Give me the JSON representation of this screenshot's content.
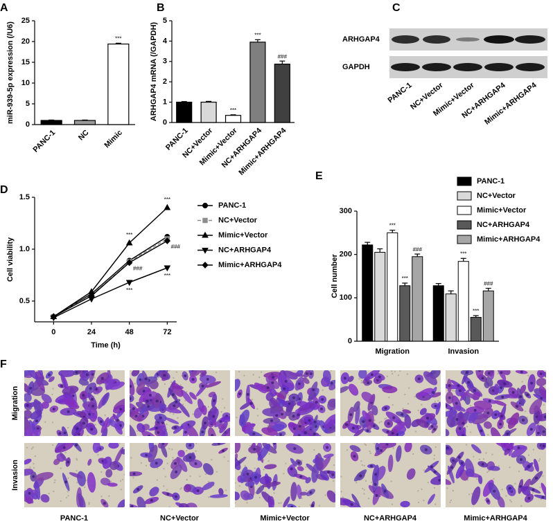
{
  "chart_data": [
    {
      "panel": "A",
      "type": "bar",
      "ylabel": "miR-939-5p expression (/U6)",
      "categories": [
        "PANC-1",
        "NC",
        "Mimic"
      ],
      "values": [
        1.0,
        1.0,
        19.4
      ],
      "errors": [
        0.1,
        0.1,
        0.2
      ],
      "colors": [
        "#000000",
        "#9a9a9a",
        "#ffffff"
      ],
      "marks": [
        null,
        null,
        "***"
      ],
      "ylim": [
        0,
        25
      ],
      "yticks": [
        0,
        5,
        10,
        15,
        20,
        25
      ]
    },
    {
      "panel": "B",
      "type": "bar",
      "ylabel": "ARHGAP4 mRNA (/GAPDH)",
      "categories": [
        "PANC-1",
        "NC+Vector",
        "Mimic+Vector",
        "NC+ARHGAP4",
        "Mimic+ARHGAP4"
      ],
      "values": [
        1.0,
        1.0,
        0.35,
        3.95,
        2.87
      ],
      "errors": [
        0.03,
        0.04,
        0.03,
        0.12,
        0.15
      ],
      "colors": [
        "#000000",
        "#d9d9d9",
        "#ffffff",
        "#7f7f7f",
        "#404040"
      ],
      "marks": [
        null,
        null,
        "***",
        "***",
        "###"
      ],
      "ylim": [
        0,
        5
      ],
      "yticks": [
        0,
        1,
        2,
        3,
        4,
        5
      ]
    },
    {
      "panel": "D",
      "type": "line",
      "xlabel": "Time (h)",
      "ylabel": "Cell viability",
      "x": [
        0,
        24,
        48,
        72
      ],
      "xlim": [
        -12,
        78
      ],
      "xticks": [
        0,
        24,
        48,
        72
      ],
      "ylim": [
        0.3,
        1.5
      ],
      "yticks": [
        0.5,
        {
          "value": 1,
          "label": "1.0"
        },
        1.5
      ],
      "series": [
        {
          "name": "PANC-1",
          "color": "#000000",
          "marker": "circle",
          "linestyle": "solid",
          "values": [
            0.35,
            0.57,
            0.89,
            1.12
          ],
          "marks": [
            null,
            null,
            null,
            null
          ]
        },
        {
          "name": "NC+Vector",
          "color": "#8c8c8c",
          "marker": "square",
          "linestyle": "dashed",
          "values": [
            0.35,
            0.56,
            0.88,
            1.1
          ],
          "marks": [
            null,
            null,
            null,
            null
          ]
        },
        {
          "name": "Mimic+Vector",
          "color": "#000000",
          "marker": "triangle-up",
          "linestyle": "solid",
          "values": [
            0.35,
            0.59,
            1.06,
            1.4
          ],
          "marks": [
            null,
            null,
            "***",
            "***"
          ]
        },
        {
          "name": "NC+ARHGAP4",
          "color": "#000000",
          "marker": "triangle-down",
          "linestyle": "solid",
          "values": [
            0.34,
            0.52,
            0.68,
            0.82
          ],
          "marks": [
            null,
            null,
            "***",
            "***"
          ]
        },
        {
          "name": "Mimic+ARHGAP4",
          "color": "#000000",
          "marker": "diamond",
          "linestyle": "solid",
          "values": [
            0.35,
            0.55,
            0.87,
            1.08
          ],
          "marks": [
            null,
            null,
            "###",
            "###"
          ]
        }
      ]
    },
    {
      "panel": "E",
      "type": "grouped-bar",
      "ylabel": "Cell number",
      "categories": [
        "Migration",
        "Invasion"
      ],
      "ylim": [
        0,
        300
      ],
      "yticks": [
        0,
        100,
        200,
        300
      ],
      "series": [
        {
          "name": "PANC-1",
          "color": "#000000",
          "values": [
            222,
            128
          ],
          "errors": [
            6,
            5
          ],
          "marks": [
            null,
            null
          ]
        },
        {
          "name": "NC+Vector",
          "color": "#d9d9d9",
          "values": [
            205,
            109
          ],
          "errors": [
            8,
            7
          ],
          "marks": [
            null,
            null
          ]
        },
        {
          "name": "Mimic+Vector",
          "color": "#ffffff",
          "values": [
            250,
            184
          ],
          "errors": [
            6,
            7
          ],
          "marks": [
            "***",
            "***"
          ]
        },
        {
          "name": "NC+ARHGAP4",
          "color": "#595959",
          "values": [
            128,
            55
          ],
          "errors": [
            6,
            4
          ],
          "marks": [
            "***",
            "***"
          ]
        },
        {
          "name": "Mimic+ARHGAP4",
          "color": "#a6a6a6",
          "values": [
            195,
            116
          ],
          "errors": [
            6,
            6
          ],
          "marks": [
            "###",
            "###"
          ]
        }
      ]
    }
  ],
  "blot": {
    "panel": "C",
    "rows": [
      "ARHGAP4",
      "GAPDH"
    ],
    "lanes": [
      "PANC-1",
      "NC+Vector",
      "Mimic+Vector",
      "NC+ARHGAP4",
      "Mimic+ARHGAP4"
    ]
  },
  "images": {
    "panel": "F",
    "rows": [
      "Migration",
      "Invasion"
    ],
    "columns": [
      "PANC-1",
      "NC+Vector",
      "Mimic+Vector",
      "NC+ARHGAP4",
      "Mimic+ARHGAP4"
    ]
  }
}
